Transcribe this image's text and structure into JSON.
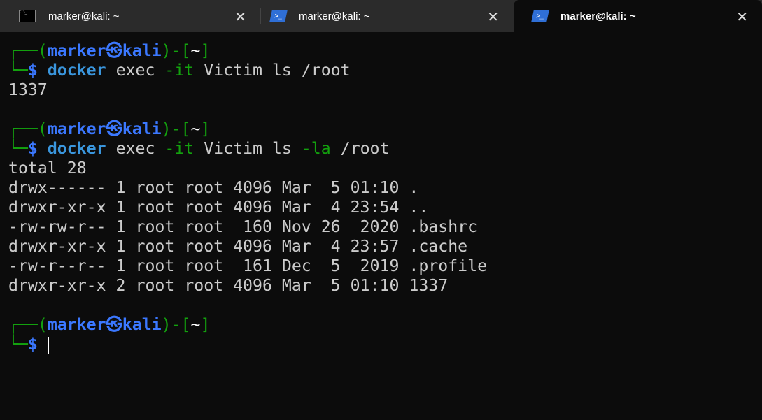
{
  "tabs": [
    {
      "title": "marker@kali: ~",
      "icon": "cmd-icon",
      "active": false
    },
    {
      "title": "marker@kali: ~",
      "icon": "powershell-icon",
      "active": false
    },
    {
      "title": "marker@kali: ~",
      "icon": "powershell-icon",
      "active": true
    }
  ],
  "colors": {
    "green": "#13a10e",
    "blue": "#3b78ff",
    "cmd_blue": "#3a96dd",
    "text": "#cccccc",
    "bg": "#0c0c0c"
  },
  "terminal": {
    "lines": [
      [
        {
          "t": "┌──(",
          "c": "green"
        },
        {
          "t": "marker㉿kali",
          "c": "blue"
        },
        {
          "t": ")-[",
          "c": "green"
        },
        {
          "t": "~",
          "c": "white"
        },
        {
          "t": "]",
          "c": "green"
        }
      ],
      [
        {
          "t": "└─",
          "c": "green"
        },
        {
          "t": "$ ",
          "c": "blue"
        },
        {
          "t": "docker",
          "c": "cmd_blue"
        },
        {
          "t": " exec ",
          "c": "text"
        },
        {
          "t": "-it",
          "c": "green"
        },
        {
          "t": " Victim ls /root",
          "c": "text"
        }
      ],
      [
        {
          "t": "1337",
          "c": "text"
        }
      ],
      [],
      [
        {
          "t": "┌──(",
          "c": "green"
        },
        {
          "t": "marker㉿kali",
          "c": "blue"
        },
        {
          "t": ")-[",
          "c": "green"
        },
        {
          "t": "~",
          "c": "white"
        },
        {
          "t": "]",
          "c": "green"
        }
      ],
      [
        {
          "t": "└─",
          "c": "green"
        },
        {
          "t": "$ ",
          "c": "blue"
        },
        {
          "t": "docker",
          "c": "cmd_blue"
        },
        {
          "t": " exec ",
          "c": "text"
        },
        {
          "t": "-it",
          "c": "green"
        },
        {
          "t": " Victim ls ",
          "c": "text"
        },
        {
          "t": "-la",
          "c": "green"
        },
        {
          "t": " /root",
          "c": "text"
        }
      ],
      [
        {
          "t": "total 28",
          "c": "text"
        }
      ],
      [
        {
          "t": "drwx------ 1 root root 4096 Mar  5 01:10 .",
          "c": "text"
        }
      ],
      [
        {
          "t": "drwxr-xr-x 1 root root 4096 Mar  4 23:54 ..",
          "c": "text"
        }
      ],
      [
        {
          "t": "-rw-rw-r-- 1 root root  160 Nov 26  2020 .bashrc",
          "c": "text"
        }
      ],
      [
        {
          "t": "drwxr-xr-x 1 root root 4096 Mar  4 23:57 .cache",
          "c": "text"
        }
      ],
      [
        {
          "t": "-rw-r--r-- 1 root root  161 Dec  5  2019 .profile",
          "c": "text"
        }
      ],
      [
        {
          "t": "drwxr-xr-x 2 root root 4096 Mar  5 01:10 1337",
          "c": "text"
        }
      ],
      [],
      [
        {
          "t": "┌──(",
          "c": "green"
        },
        {
          "t": "marker㉿kali",
          "c": "blue"
        },
        {
          "t": ")-[",
          "c": "green"
        },
        {
          "t": "~",
          "c": "white"
        },
        {
          "t": "]",
          "c": "green"
        }
      ],
      [
        {
          "t": "└─",
          "c": "green"
        },
        {
          "t": "$",
          "c": "blue"
        }
      ]
    ]
  }
}
